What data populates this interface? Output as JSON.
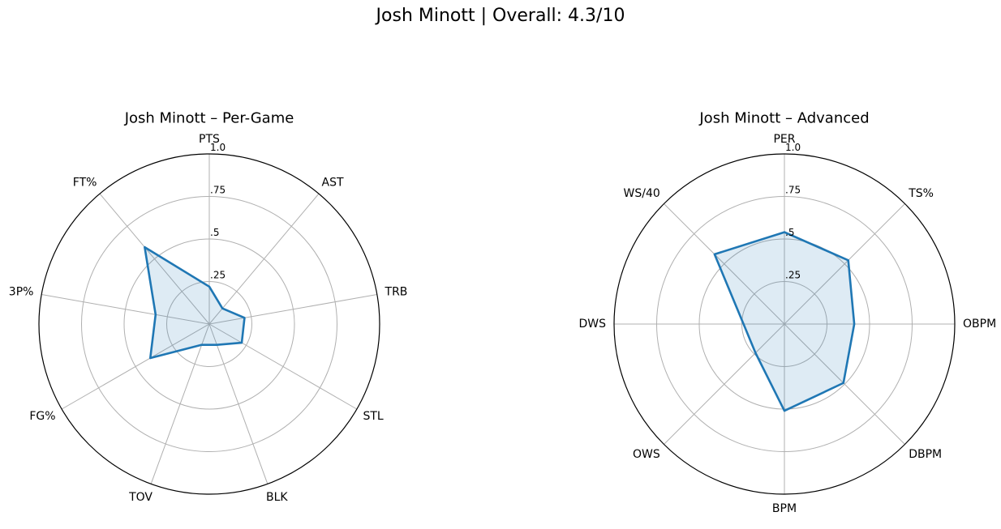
{
  "title": "Josh Minott | Overall: 4.3/10",
  "chart_data": [
    {
      "type": "radar",
      "title": "Josh Minott – Per-Game",
      "axes": [
        "PTS",
        "AST",
        "TRB",
        "STL",
        "BLK",
        "TOV",
        "FG%",
        "3P%",
        "FT%"
      ],
      "values": [
        0.22,
        0.12,
        0.21,
        0.22,
        0.13,
        0.13,
        0.4,
        0.32,
        0.59
      ],
      "rticks": [
        0.25,
        0.5,
        0.75,
        1.0
      ],
      "rtick_labels": [
        ".25",
        ".5",
        ".75",
        "1.0"
      ],
      "rlim": [
        0,
        1
      ],
      "grid": true,
      "colors": {
        "line": "#1f77b4",
        "fill": "#1f77b4",
        "grid": "#b0b0b0",
        "outer": "#000000"
      }
    },
    {
      "type": "radar",
      "title": "Josh Minott – Advanced",
      "axes": [
        "PER",
        "TS%",
        "OBPM",
        "DBPM",
        "BPM",
        "OWS",
        "DWS",
        "WS/40"
      ],
      "values": [
        0.54,
        0.53,
        0.41,
        0.49,
        0.51,
        0.24,
        0.24,
        0.58
      ],
      "rticks": [
        0.25,
        0.5,
        0.75,
        1.0
      ],
      "rtick_labels": [
        ".25",
        ".5",
        ".75",
        "1.0"
      ],
      "rlim": [
        0,
        1
      ],
      "grid": true,
      "colors": {
        "line": "#1f77b4",
        "fill": "#1f77b4",
        "grid": "#b0b0b0",
        "outer": "#000000"
      }
    }
  ]
}
